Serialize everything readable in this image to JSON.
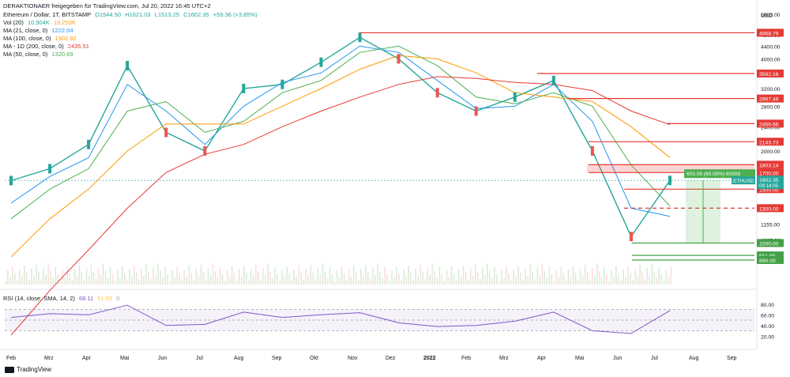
{
  "header": {
    "title": "DERAKTIONAER freigegeben für TradingView.com, Jul 20, 2022 16:45 UTC+2",
    "symbol_line": "Ethereum / Dollar, 1T, BITSTAMP",
    "ohlc": {
      "o": "O1544.50",
      "h": "H1621.03",
      "l": "L1513.25",
      "c": "C1602.35",
      "chg": "+59.36 (+3.85%)"
    },
    "indicators": [
      {
        "label": "Vol (20)",
        "value": "10.904K",
        "value2": "19.253K",
        "color": "#26a69a",
        "color2": "#f7a21b"
      },
      {
        "label": "MA (21, close, 0)",
        "value": "1222.04",
        "color": "#2196f3"
      },
      {
        "label": "MA (100, close, 0)",
        "value": "1902.92",
        "color": "#ff9800"
      },
      {
        "label": "MA - 1D (200, close, 0)",
        "value": "2435.51",
        "color": "#e53935"
      },
      {
        "label": "MA (50, close, 0)",
        "value": "1320.69",
        "color": "#4caf50"
      }
    ],
    "rsi_label": "RSI (14, close, SMA, 14, 2)",
    "rsi_values": [
      "68.11",
      "51.83",
      "0"
    ]
  },
  "footer": {
    "brand": "TradingView"
  },
  "axis": {
    "currency": "USD",
    "price_ticks": [
      "5600.00",
      "4800.00",
      "4400.00",
      "4000.00",
      "3600.00",
      "3200.00",
      "2800.00",
      "2400.00",
      "2000.00",
      "1600.00",
      "1155.00",
      "1025.00",
      "915.00"
    ],
    "rsi_ticks": [
      "80.00",
      "60.00",
      "40.00",
      "20.00"
    ],
    "x_labels": [
      "Feb",
      "Mrz",
      "Apr",
      "Mai",
      "Jun",
      "Jul",
      "Aug",
      "Sep",
      "Okt",
      "Nov",
      "Dez",
      "2022",
      "Feb",
      "Mrz",
      "Apr",
      "Mai",
      "Jun",
      "Jul",
      "Aug",
      "Sep"
    ]
  },
  "levels": [
    {
      "label": "4868.79",
      "color": "#e53935"
    },
    {
      "label": "3582.16",
      "color": "#e53935"
    },
    {
      "label": "2967.49",
      "color": "#e53935"
    },
    {
      "label": "2456.66",
      "color": "#e53935"
    },
    {
      "label": "2143.73",
      "color": "#e53935"
    },
    {
      "label": "1803.14",
      "color": "#e53935"
    },
    {
      "label": "1700.00",
      "color": "#e53935"
    },
    {
      "label": "1500.00",
      "color": "#e53935"
    },
    {
      "label": "1300.00",
      "color": "#e53935"
    },
    {
      "label": "1000.00",
      "color": "#43a047"
    },
    {
      "label": "911.00",
      "color": "#43a047"
    },
    {
      "label": "880.00",
      "color": "#43a047"
    }
  ],
  "current": {
    "tag": "ETHUSD",
    "price": "1602.35",
    "countdown": "09:14:05"
  },
  "measure": {
    "text": "603.09 (60.09%) 60309"
  },
  "chart_data": {
    "type": "line",
    "title": "Ethereum / Dollar, 1T, BITSTAMP",
    "price_scale": "log",
    "x": [
      "2021-02",
      "2021-03",
      "2021-04",
      "2021-05",
      "2021-06",
      "2021-07",
      "2021-08",
      "2021-09",
      "2021-10",
      "2021-11",
      "2021-12",
      "2022-01",
      "2022-02",
      "2022-03",
      "2022-04",
      "2022-05",
      "2022-06",
      "2022-07"
    ],
    "series": [
      {
        "name": "ETHUSD",
        "values": [
          1600,
          1750,
          2100,
          3800,
          2300,
          2000,
          3200,
          3300,
          3900,
          4700,
          4000,
          3100,
          2700,
          3000,
          3400,
          2000,
          1050,
          1602
        ]
      },
      {
        "name": "MA (21, close, 0)",
        "values": [
          1350,
          1650,
          1900,
          3300,
          2700,
          2100,
          2800,
          3350,
          3600,
          4400,
          4200,
          3400,
          2750,
          2800,
          3300,
          2500,
          1300,
          1222
        ]
      },
      {
        "name": "MA (50, close, 0)",
        "values": [
          1200,
          1500,
          1750,
          2700,
          2900,
          2300,
          2500,
          3100,
          3400,
          4200,
          4400,
          3800,
          3000,
          2850,
          3100,
          2800,
          1800,
          1321
        ]
      },
      {
        "name": "MA (100, close, 0)",
        "values": [
          900,
          1200,
          1500,
          2000,
          2450,
          2450,
          2450,
          2800,
          3200,
          3700,
          4100,
          4000,
          3600,
          3100,
          3000,
          2900,
          2400,
          1903
        ]
      },
      {
        "name": "MA - 1D (200, close, 0)",
        "values": [
          500,
          700,
          950,
          1300,
          1700,
          1950,
          2100,
          2400,
          2700,
          3000,
          3300,
          3500,
          3450,
          3350,
          3300,
          3150,
          2700,
          2436
        ]
      }
    ],
    "rsi": [
      55,
      62,
      60,
      78,
      40,
      42,
      65,
      55,
      60,
      64,
      45,
      38,
      40,
      48,
      65,
      30,
      25,
      68
    ],
    "ylim": [
      800,
      5800
    ]
  }
}
